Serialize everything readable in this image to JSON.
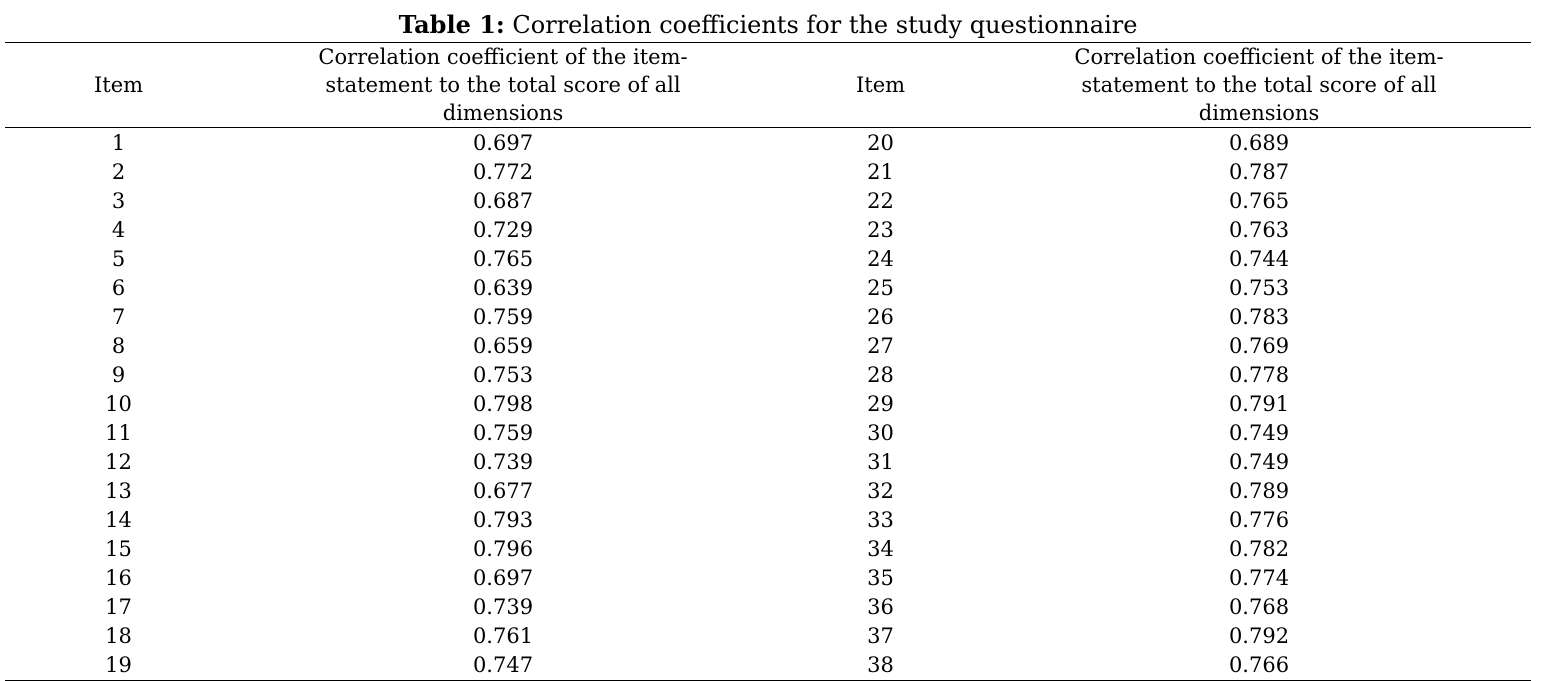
{
  "caption": {
    "label": "Table 1:",
    "text": "Correlation coefficients for the study questionnaire"
  },
  "table": {
    "headers": [
      "Item",
      "Correlation coefficient of the item-statement to the total score of all dimensions",
      "Item",
      "Correlation coefficient of the item-statement to the total score of all dimensions"
    ],
    "rows": [
      [
        "1",
        "0.697",
        "20",
        "0.689"
      ],
      [
        "2",
        "0.772",
        "21",
        "0.787"
      ],
      [
        "3",
        "0.687",
        "22",
        "0.765"
      ],
      [
        "4",
        "0.729",
        "23",
        "0.763"
      ],
      [
        "5",
        "0.765",
        "24",
        "0.744"
      ],
      [
        "6",
        "0.639",
        "25",
        "0.753"
      ],
      [
        "7",
        "0.759",
        "26",
        "0.783"
      ],
      [
        "8",
        "0.659",
        "27",
        "0.769"
      ],
      [
        "9",
        "0.753",
        "28",
        "0.778"
      ],
      [
        "10",
        "0.798",
        "29",
        "0.791"
      ],
      [
        "11",
        "0.759",
        "30",
        "0.749"
      ],
      [
        "12",
        "0.739",
        "31",
        "0.749"
      ],
      [
        "13",
        "0.677",
        "32",
        "0.789"
      ],
      [
        "14",
        "0.793",
        "33",
        "0.776"
      ],
      [
        "15",
        "0.796",
        "34",
        "0.782"
      ],
      [
        "16",
        "0.697",
        "35",
        "0.774"
      ],
      [
        "17",
        "0.739",
        "36",
        "0.768"
      ],
      [
        "18",
        "0.761",
        "37",
        "0.792"
      ],
      [
        "19",
        "0.747",
        "38",
        "0.766"
      ]
    ]
  }
}
